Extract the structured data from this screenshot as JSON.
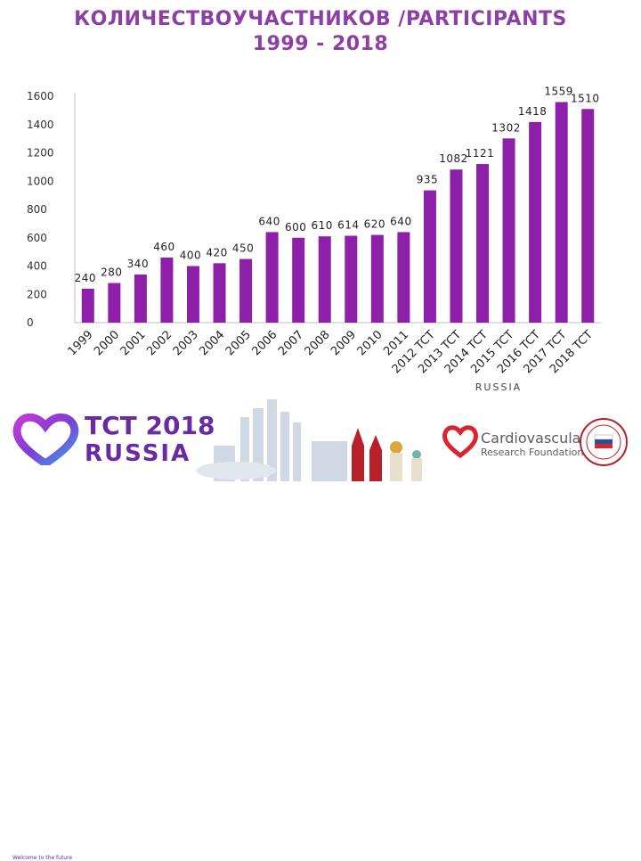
{
  "title": {
    "line1": "КОЛИЧЕСТВОУЧАСТНИКОВ /PARTICIPANTS",
    "line2": "1999 - 2018"
  },
  "chart_data": {
    "type": "bar",
    "categories": [
      "1999",
      "2000",
      "2001",
      "2002",
      "2003",
      "2004",
      "2005",
      "2006",
      "2007",
      "2008",
      "2009",
      "2010",
      "2011",
      "2012 TCT",
      "2013 TCT",
      "2014 TCT",
      "2015 TCT",
      "2016 TCT",
      "2017 TCT",
      "2018 TCT"
    ],
    "values": [
      240,
      280,
      340,
      460,
      400,
      420,
      450,
      640,
      600,
      610,
      614,
      620,
      640,
      935,
      1082,
      1121,
      1302,
      1418,
      1559,
      1510
    ],
    "ylim": [
      0,
      1600
    ],
    "yticks": [
      0,
      200,
      400,
      600,
      800,
      1000,
      1200,
      1400,
      1600
    ],
    "bar_color": "#8e1fa8",
    "grid": false,
    "x_label_rotation": -45,
    "xlabel": "",
    "ylabel": "",
    "sub_label": "RUSSIA"
  },
  "footer": {
    "tct_line1": "TCT 2018",
    "tct_line2": "RUSSIA",
    "welcome": "Welcome to the future",
    "crf_line1": "Cardiovascular",
    "crf_line2": "Research Foundation",
    "brand_color": "#6a2aa0",
    "crf_heart_color": "#d9232e"
  }
}
